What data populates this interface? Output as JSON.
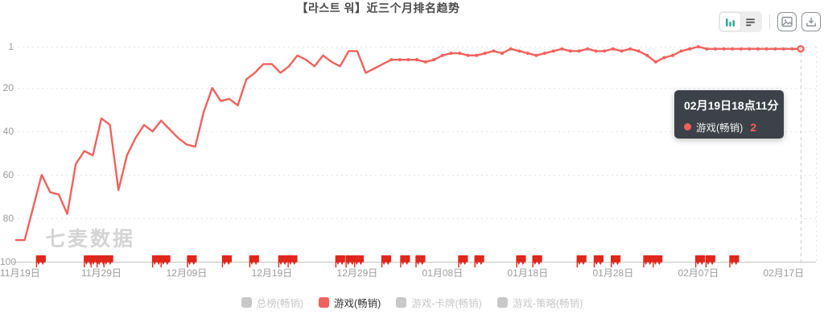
{
  "header": {
    "title": "【라스트 워】近三个月排名趋势"
  },
  "toolbar": {
    "chart_view_icon": "bar-chart-icon",
    "table_view_icon": "list-icon",
    "save_image_icon": "image-icon",
    "download_icon": "download-icon"
  },
  "watermark": "七麦数据",
  "colors": {
    "line": "#f0615d",
    "flag": "#e0271c",
    "toggle_active_icon": "#2fae95",
    "grid": "#e3e3e3",
    "axis": "#c0c4c8",
    "axis_pointer": "#c6cbd1",
    "label": "#9b9b9b",
    "legend_inactive": "#c8c8c8",
    "tooltip_bg": "#343a40",
    "watermark": "#d4d4d4"
  },
  "chart_data": {
    "type": "line",
    "title": "【라스트 워】近三个月排名趋势",
    "y_axis": {
      "ticks": [
        1,
        20,
        40,
        60,
        80,
        100
      ],
      "inverted": true,
      "range": [
        1,
        100
      ],
      "grid": "dashed"
    },
    "x_axis": {
      "tick_labels": [
        "11月19日",
        "11月29日",
        "12月09日",
        "12月19日",
        "12月29日",
        "01月08日",
        "01月18日",
        "01月28日",
        "02月07日",
        "02月17日"
      ],
      "tick_interval_days": 10,
      "total_days": 92
    },
    "series": [
      {
        "name": "游戏(畅销)",
        "color": "#f0615d",
        "start_label": "11月19日",
        "end_label": "02月19日",
        "values": [
          90,
          90,
          75,
          60,
          68,
          69,
          78,
          55,
          49,
          51,
          34,
          37,
          67,
          51,
          43,
          37,
          40,
          35,
          39,
          43,
          46,
          47,
          31,
          20,
          26,
          25,
          28,
          16,
          13,
          9,
          9,
          13,
          10,
          5,
          7,
          10,
          5,
          8,
          10,
          3,
          3,
          13,
          11,
          9,
          7,
          7,
          7,
          7,
          8,
          7,
          5,
          4,
          4,
          5,
          5,
          4,
          3,
          4,
          2,
          3,
          4,
          5,
          4,
          3,
          2,
          3,
          3,
          2,
          3,
          3,
          2,
          3,
          2,
          3,
          5,
          8,
          6,
          5,
          3,
          2,
          1,
          2,
          2,
          2,
          2,
          2,
          2,
          2,
          2,
          2,
          2,
          2,
          2
        ]
      }
    ],
    "event_flags_days": [
      2.4,
      8.0,
      8.8,
      9.5,
      10.3,
      16.0,
      17.0,
      20.1,
      24.2,
      27.4,
      30.8,
      31.9,
      37.5,
      38.7,
      39.7,
      42.9,
      45.1,
      46.9,
      51.9,
      53.8,
      58.7,
      60.6,
      65.8,
      67.8,
      69.8,
      73.6,
      74.7,
      79.7,
      80.9,
      83.7
    ],
    "legend": [
      {
        "label": "总榜(畅销)",
        "active": false
      },
      {
        "label": "游戏(畅销)",
        "active": true,
        "color": "#f0615d"
      },
      {
        "label": "游戏-卡牌(畅销)",
        "active": false
      },
      {
        "label": "游戏-策略(畅销)",
        "active": false
      }
    ],
    "tooltip": {
      "title": "02月19日18点11分",
      "series": "游戏(畅销)",
      "value": "2"
    },
    "layout": {
      "markers_visible_from_index": 44,
      "legend_position": "bottom",
      "tooltip_anchor": "last-point"
    }
  }
}
